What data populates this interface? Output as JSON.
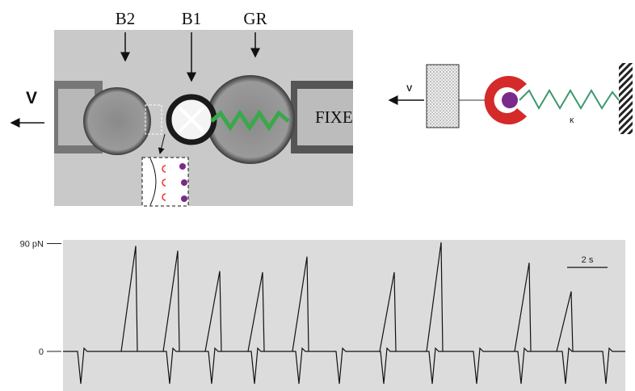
{
  "figure": {
    "micrograph": {
      "labels": {
        "b2": "B2",
        "b1": "B1",
        "gr": "GR",
        "v": "V",
        "fixe": "FIXE"
      }
    },
    "schematic": {
      "labels": {
        "v": "V",
        "kappa": "κ"
      }
    },
    "trace": {
      "ylim": [
        -33,
        93
      ],
      "yticks": [
        {
          "value": 90,
          "label": "90 pN"
        },
        0
      ],
      "scale_bar": "2 s",
      "peaks": [
        88,
        84,
        67,
        66,
        79,
        66,
        91,
        74,
        50
      ]
    }
  }
}
